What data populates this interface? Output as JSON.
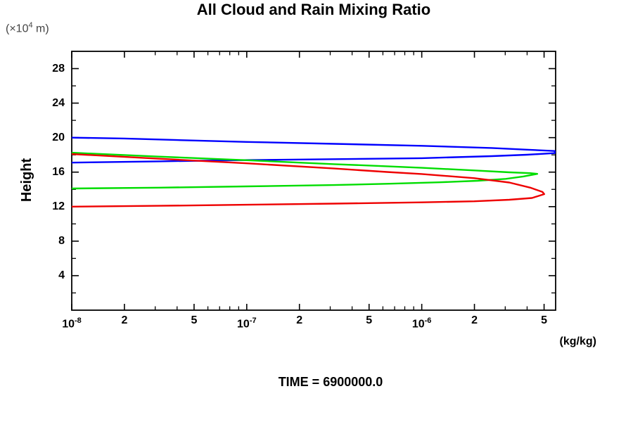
{
  "page": {
    "title": "All Cloud and Rain Mixing Ratio",
    "time_label": "TIME = 6900000.0"
  },
  "labels": {
    "y_axis_title": "Height",
    "y_unit": {
      "prefix": "(×10",
      "sup": "4",
      "suffix": " m)"
    },
    "x_unit": "(kg/kg)"
  },
  "chart_data": {
    "type": "line",
    "title": "All Cloud and Rain Mixing Ratio",
    "xlabel": "(kg/kg)",
    "ylabel": "Height",
    "y_unit_label": "(x10^4 m)",
    "annotation": "TIME = 6900000.0",
    "x_scale": "log10",
    "x_range_log10": [
      -8,
      -5.235
    ],
    "y_range": [
      0,
      30
    ],
    "grid": "off",
    "legend": "none",
    "frame_color": "#000000",
    "x_ticks_major": [
      {
        "log": -8,
        "base": "10",
        "sup": "-8"
      },
      {
        "log": -7.699,
        "text": "2"
      },
      {
        "log": -7.301,
        "text": "5"
      },
      {
        "log": -7,
        "base": "10",
        "sup": "-7"
      },
      {
        "log": -6.699,
        "text": "2"
      },
      {
        "log": -6.301,
        "text": "5"
      },
      {
        "log": -6,
        "base": "10",
        "sup": "-6"
      },
      {
        "log": -5.699,
        "text": "2"
      },
      {
        "log": -5.301,
        "text": "5"
      }
    ],
    "x_ticks_minor_log": [
      -7.523,
      -7.398,
      -7.222,
      -7.155,
      -7.097,
      -7.046,
      -6.523,
      -6.398,
      -6.222,
      -6.155,
      -6.097,
      -6.046,
      -5.523,
      -5.398
    ],
    "y_ticks_major": [
      {
        "value": 4,
        "label": "4"
      },
      {
        "value": 8,
        "label": "8"
      },
      {
        "value": 12,
        "label": "12"
      },
      {
        "value": 16,
        "label": "16"
      },
      {
        "value": 20,
        "label": "20"
      },
      {
        "value": 24,
        "label": "24"
      },
      {
        "value": 28,
        "label": "28"
      }
    ],
    "y_ticks_minor": [
      2,
      6,
      10,
      14,
      18,
      22,
      26
    ],
    "series": [
      {
        "name": "cloud-profile-blue",
        "color": "#0000ff",
        "peak": {
          "log10_value": -5.24,
          "height_1e4m": 18.3
        },
        "points_log10x_height": [
          [
            -8,
            20.0
          ],
          [
            -7.7,
            19.9
          ],
          [
            -7.4,
            19.72
          ],
          [
            -7.0,
            19.5
          ],
          [
            -6.5,
            19.28
          ],
          [
            -6.0,
            19.05
          ],
          [
            -5.6,
            18.8
          ],
          [
            -5.4,
            18.6
          ],
          [
            -5.24,
            18.45
          ],
          [
            -5.24,
            18.2
          ],
          [
            -5.4,
            18.02
          ],
          [
            -5.6,
            17.85
          ],
          [
            -6.0,
            17.62
          ],
          [
            -6.5,
            17.5
          ],
          [
            -7.0,
            17.4
          ],
          [
            -7.5,
            17.25
          ],
          [
            -8,
            17.1
          ]
        ]
      },
      {
        "name": "cloud-profile-green",
        "color": "#00dd00",
        "peak": {
          "log10_value": -5.34,
          "height_1e4m": 15.8
        },
        "points_log10x_height": [
          [
            -8,
            18.25
          ],
          [
            -7.5,
            17.8
          ],
          [
            -7.0,
            17.38
          ],
          [
            -6.5,
            16.92
          ],
          [
            -6.2,
            16.68
          ],
          [
            -6.0,
            16.5
          ],
          [
            -5.7,
            16.2
          ],
          [
            -5.5,
            15.98
          ],
          [
            -5.38,
            15.88
          ],
          [
            -5.34,
            15.8
          ],
          [
            -5.42,
            15.5
          ],
          [
            -5.52,
            15.22
          ],
          [
            -5.68,
            15.0
          ],
          [
            -5.9,
            14.82
          ],
          [
            -6.2,
            14.65
          ],
          [
            -6.5,
            14.5
          ],
          [
            -7.0,
            14.35
          ],
          [
            -7.5,
            14.2
          ],
          [
            -8,
            14.1
          ]
        ]
      },
      {
        "name": "rain-profile-red",
        "color": "#ee0000",
        "peak": {
          "log10_value": -5.3,
          "height_1e4m": 13.45
        },
        "points_log10x_height": [
          [
            -8,
            18.1
          ],
          [
            -7.5,
            17.55
          ],
          [
            -7.0,
            17.02
          ],
          [
            -6.5,
            16.42
          ],
          [
            -6.2,
            16.02
          ],
          [
            -6.0,
            15.78
          ],
          [
            -5.7,
            15.3
          ],
          [
            -5.5,
            14.8
          ],
          [
            -5.38,
            14.2
          ],
          [
            -5.31,
            13.7
          ],
          [
            -5.3,
            13.45
          ],
          [
            -5.37,
            13.0
          ],
          [
            -5.5,
            12.8
          ],
          [
            -5.7,
            12.62
          ],
          [
            -6.0,
            12.5
          ],
          [
            -6.5,
            12.35
          ],
          [
            -7.0,
            12.22
          ],
          [
            -7.5,
            12.1
          ],
          [
            -8,
            12.0
          ]
        ]
      }
    ]
  }
}
